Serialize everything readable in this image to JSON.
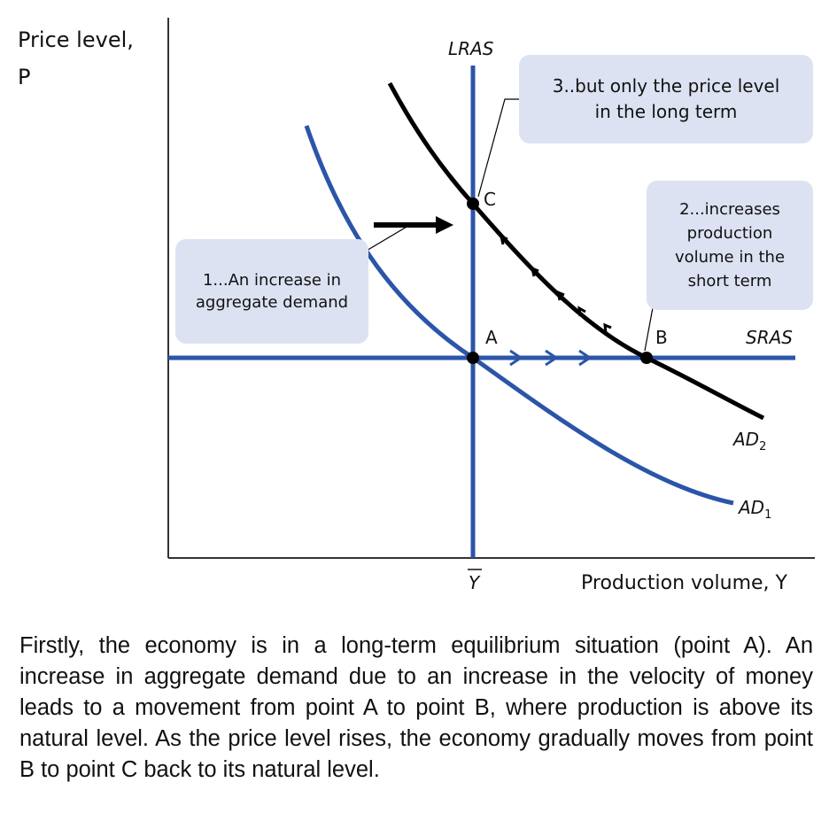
{
  "axes": {
    "y_label_line1": "Price level,",
    "y_label_line2": "P",
    "x_label": "Production volume, Y",
    "x_tick": "Y"
  },
  "curves": {
    "lras": "LRAS",
    "sras": "SRAS",
    "ad1_base": "AD",
    "ad1_sub": "1",
    "ad2_base": "AD",
    "ad2_sub": "2"
  },
  "points": {
    "a": "A",
    "b": "B",
    "c": "C"
  },
  "annotations": {
    "step1": "1...An increase in aggregate demand",
    "step2": "2...increases production volume in the short term",
    "step3": "3..but only the price level in the long term"
  },
  "caption": "Firstly, the economy is in a long-term equilibrium situation (point A). An increase in aggregate demand due to an increase in the velocity of money leads to a movement from point A to point B, where production is above its natural level. As the price level rises, the economy gradually moves from point B to point C back to its natural level.",
  "colors": {
    "blue": "#2b55a8",
    "black": "#000000",
    "bubble": "#dde2f2"
  }
}
